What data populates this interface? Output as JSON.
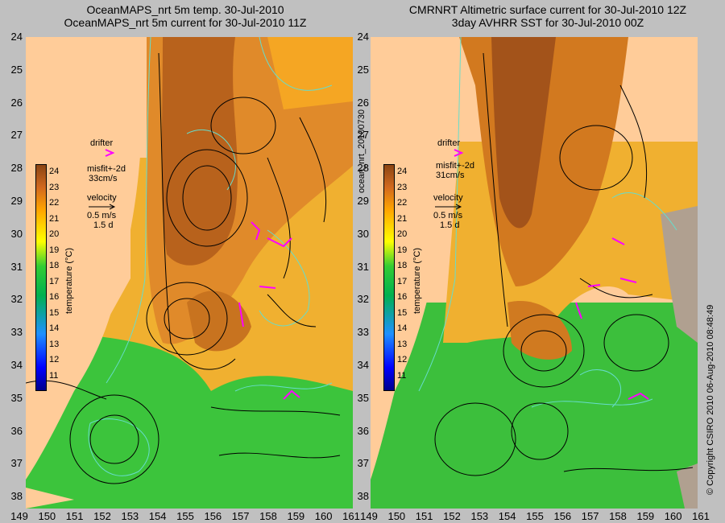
{
  "titles": {
    "left_line1": "OceanMAPS_nrt 5m temp. 30-Jul-2010",
    "left_line2": "OceanMAPS_nrt 5m current for 30-Jul-2010 11Z",
    "right_line1": "CMRNRT Altimetric surface current for 30-Jul-2010 12Z",
    "right_line2": "3day AVHRR SST for 30-Jul-2010 00Z"
  },
  "y_axis_labels": [
    "24",
    "25",
    "26",
    "27",
    "28",
    "29",
    "30",
    "31",
    "32",
    "33",
    "34",
    "35",
    "36",
    "37",
    "38"
  ],
  "x_axis_labels": [
    "149",
    "150",
    "151",
    "152",
    "153",
    "154",
    "155",
    "156",
    "157",
    "158",
    "159",
    "160",
    "161"
  ],
  "x_axis_labels_right": [
    "149",
    "150",
    "151",
    "152",
    "153",
    "154",
    "155",
    "156",
    "157",
    "158",
    "159",
    "160",
    "161"
  ],
  "legend_left": {
    "drifter": "drifter",
    "misfit": "misfit+-2d",
    "speed": "33cm/s",
    "velocity": "velocity",
    "scale": "0.5 m/s",
    "days": "1.5 d"
  },
  "legend_right": {
    "drifter": "drifter",
    "misfit": "misfit+-2d",
    "speed": "31cm/s",
    "velocity": "velocity",
    "scale": "0.5 m/s",
    "days": "1.5 d"
  },
  "colorbar": {
    "ticks": [
      "24",
      "23",
      "22",
      "21",
      "20",
      "19",
      "18",
      "17",
      "16",
      "15",
      "14",
      "13",
      "12",
      "11"
    ],
    "title": "temperature (°C)"
  },
  "side_labels": {
    "middle": "ocean_nrt_20100730",
    "right": "© Copyright CSIRO 2010   06-Aug-2010 08:48:49"
  },
  "colors": {
    "land": "#ffcc99",
    "warm": "#d2691e",
    "mid": "#ffa500",
    "cool": "#33cc33",
    "drifter": "#ff00ff",
    "contour": "#66ddcc"
  }
}
